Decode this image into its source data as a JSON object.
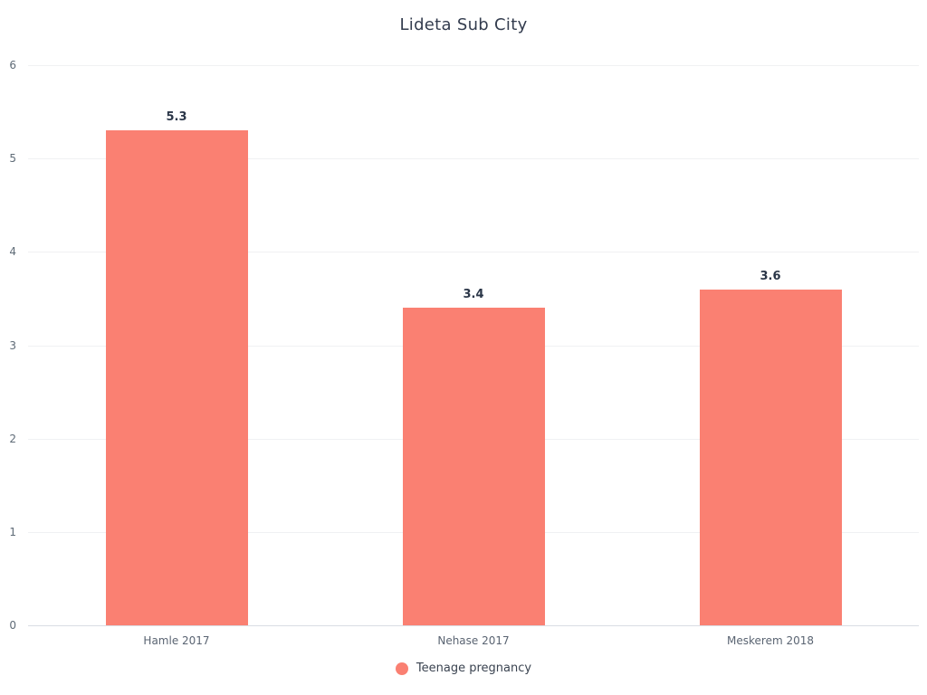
{
  "chart_data": {
    "type": "bar",
    "title": "Lideta Sub City",
    "categories": [
      "Hamle 2017",
      "Nehase 2017",
      "Meskerem 2018"
    ],
    "series": [
      {
        "name": "Teenage pregnancy",
        "values": [
          5.3,
          3.4,
          3.6
        ]
      }
    ],
    "value_labels": [
      "5.3",
      "3.4",
      "3.6"
    ],
    "ylim": [
      0,
      6
    ],
    "yticks": [
      0,
      1,
      2,
      3,
      4,
      5,
      6
    ],
    "grid": true,
    "legend_position": "bottom",
    "colors": {
      "bar": "#fa8072",
      "title": "#333c4e",
      "value_label": "#2b3648",
      "axis_tick": "#5f6b77",
      "gridline": "#f0f1f3",
      "baseline": "#d9dde3"
    }
  }
}
